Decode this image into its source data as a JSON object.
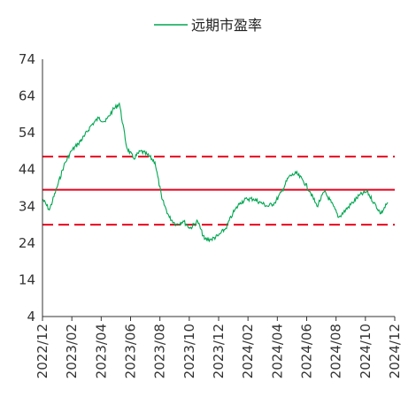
{
  "chart_data": {
    "type": "line",
    "legend_position": "top",
    "grid": false,
    "ylim": [
      4,
      74
    ],
    "y_ticks": [
      "74",
      "64",
      "54",
      "44",
      "34",
      "24",
      "14",
      "4"
    ],
    "x_ticks": [
      "2022/12",
      "2023/02",
      "2023/04",
      "2023/06",
      "2023/08",
      "2023/10",
      "2023/12",
      "2024/02",
      "2024/04",
      "2024/06",
      "2024/08",
      "2024/10",
      "2024/12"
    ],
    "series": [
      {
        "name": "远期市盈率",
        "color": "#00a651",
        "x": [
          "2022-12-01",
          "2022-12-16",
          "2023-01-01",
          "2023-01-16",
          "2023-02-01",
          "2023-02-16",
          "2023-03-01",
          "2023-03-16",
          "2023-04-01",
          "2023-04-16",
          "2023-05-01",
          "2023-05-16",
          "2023-06-01",
          "2023-06-16",
          "2023-07-01",
          "2023-07-16",
          "2023-08-01",
          "2023-08-16",
          "2023-09-01",
          "2023-09-16",
          "2023-10-01",
          "2023-10-16",
          "2023-11-01",
          "2023-11-16",
          "2023-12-01",
          "2023-12-16",
          "2024-01-01",
          "2024-01-16",
          "2024-02-01",
          "2024-02-16",
          "2024-03-01",
          "2024-03-16",
          "2024-04-01",
          "2024-04-16",
          "2024-05-01",
          "2024-05-16",
          "2024-06-01",
          "2024-06-16",
          "2024-07-01",
          "2024-07-16",
          "2024-08-01",
          "2024-08-16",
          "2024-09-01",
          "2024-09-16",
          "2024-10-01",
          "2024-10-16",
          "2024-11-01",
          "2024-11-16",
          "2024-12-01",
          "2024-12-16"
        ],
        "values": [
          36,
          33,
          39,
          45,
          49,
          51,
          53,
          56,
          58,
          57,
          60,
          62,
          50,
          47,
          49,
          48,
          46,
          36,
          31,
          29,
          30,
          28,
          30,
          25,
          25,
          26,
          28,
          32,
          35,
          36,
          36,
          35,
          34,
          35,
          38,
          42,
          43,
          41,
          38,
          34,
          38,
          35,
          31,
          33,
          35,
          37,
          38,
          35,
          32,
          35
        ]
      }
    ],
    "reference_lines": [
      {
        "y": 47.5,
        "style": "dashed",
        "color": "#e8001c"
      },
      {
        "y": 38.5,
        "style": "solid",
        "color": "#e8001c"
      },
      {
        "y": 29.0,
        "style": "dashed",
        "color": "#e8001c"
      }
    ]
  }
}
